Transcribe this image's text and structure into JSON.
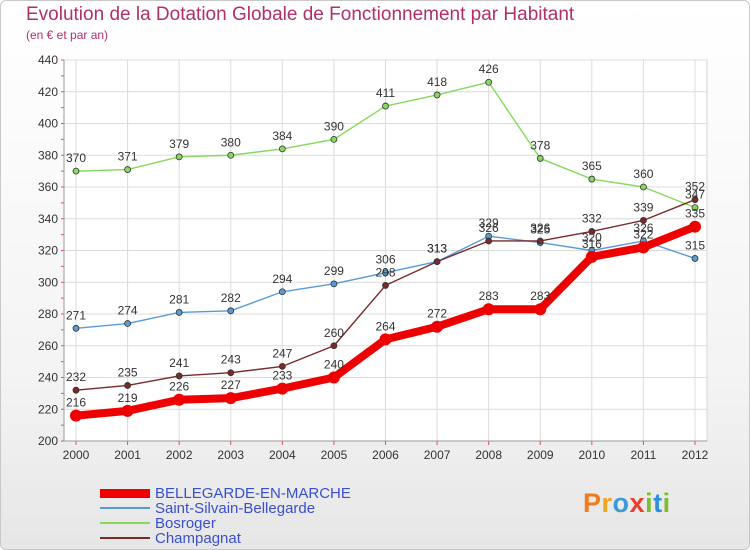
{
  "header": {
    "title": "Evolution de la Dotation Globale de Fonctionnement par Habitant",
    "subtitle": "(en € et par an)"
  },
  "logo": {
    "letters": [
      "P",
      "r",
      "o",
      "x",
      "i",
      "t",
      "i"
    ],
    "colors": [
      "#f07c1c",
      "#f2a51e",
      "#3b9ad9",
      "#e8402c",
      "#7bbf2a",
      "#2f8fd8",
      "#7bbf2a"
    ]
  },
  "chart_data": {
    "type": "line",
    "title": "Evolution de la Dotation Globale de Fonctionnement par Habitant",
    "subtitle": "(en € et par an)",
    "categories": [
      "2000",
      "2001",
      "2002",
      "2003",
      "2004",
      "2005",
      "2006",
      "2007",
      "2008",
      "2009",
      "2010",
      "2011",
      "2012"
    ],
    "yticks": [
      200,
      220,
      240,
      260,
      280,
      300,
      320,
      340,
      360,
      380,
      400,
      420,
      440
    ],
    "ylim": [
      200,
      440
    ],
    "grid": true,
    "legend_position": "bottom-left",
    "series": [
      {
        "name": "BELLEGARDE-EN-MARCHE",
        "color": "#ee0000",
        "width": 8,
        "labels": true,
        "values": [
          216,
          219,
          226,
          227,
          233,
          240,
          264,
          272,
          283,
          283,
          316,
          322,
          335
        ],
        "label_text": [
          "216",
          "219",
          "226",
          "227",
          "233",
          "240",
          "264",
          "272",
          "283",
          "283",
          "316",
          "322",
          "335"
        ]
      },
      {
        "name": "Saint-Silvain-Bellegarde",
        "color": "#5a9bd5",
        "width": 1.4,
        "labels": true,
        "values": [
          271,
          274,
          281,
          282,
          294,
          299,
          306,
          313,
          329,
          325,
          320,
          326,
          315
        ],
        "label_text": [
          "271",
          "274",
          "281",
          "282",
          "294",
          "299",
          "306",
          "313",
          "329",
          "325",
          "320",
          "326",
          "315"
        ]
      },
      {
        "name": "Bosroger",
        "color": "#88d860",
        "width": 1.4,
        "labels": true,
        "values": [
          370,
          371,
          379,
          380,
          384,
          390,
          411,
          418,
          426,
          378,
          365,
          360,
          347
        ],
        "label_text": [
          "370",
          "371",
          "379",
          "380",
          "384",
          "390",
          "411",
          "418",
          "426",
          "378",
          "365",
          "360",
          "347"
        ]
      },
      {
        "name": "Champagnat",
        "color": "#7a2a2a",
        "width": 1.4,
        "labels": true,
        "values": [
          232,
          235,
          241,
          243,
          247,
          260,
          298,
          313,
          326,
          326,
          332,
          339,
          352
        ],
        "label_text": [
          "232",
          "235",
          "241",
          "243",
          "247",
          "260",
          "298",
          "313",
          "326",
          "326",
          "332",
          "339",
          "352"
        ]
      }
    ],
    "legend": [
      {
        "name": "BELLEGARDE-EN-MARCHE",
        "color": "#ee0000"
      },
      {
        "name": "Saint-Silvain-Bellegarde",
        "color": "#5a9bd5"
      },
      {
        "name": "Bosroger",
        "color": "#88d860"
      },
      {
        "name": "Champagnat",
        "color": "#7a2a2a"
      }
    ]
  }
}
